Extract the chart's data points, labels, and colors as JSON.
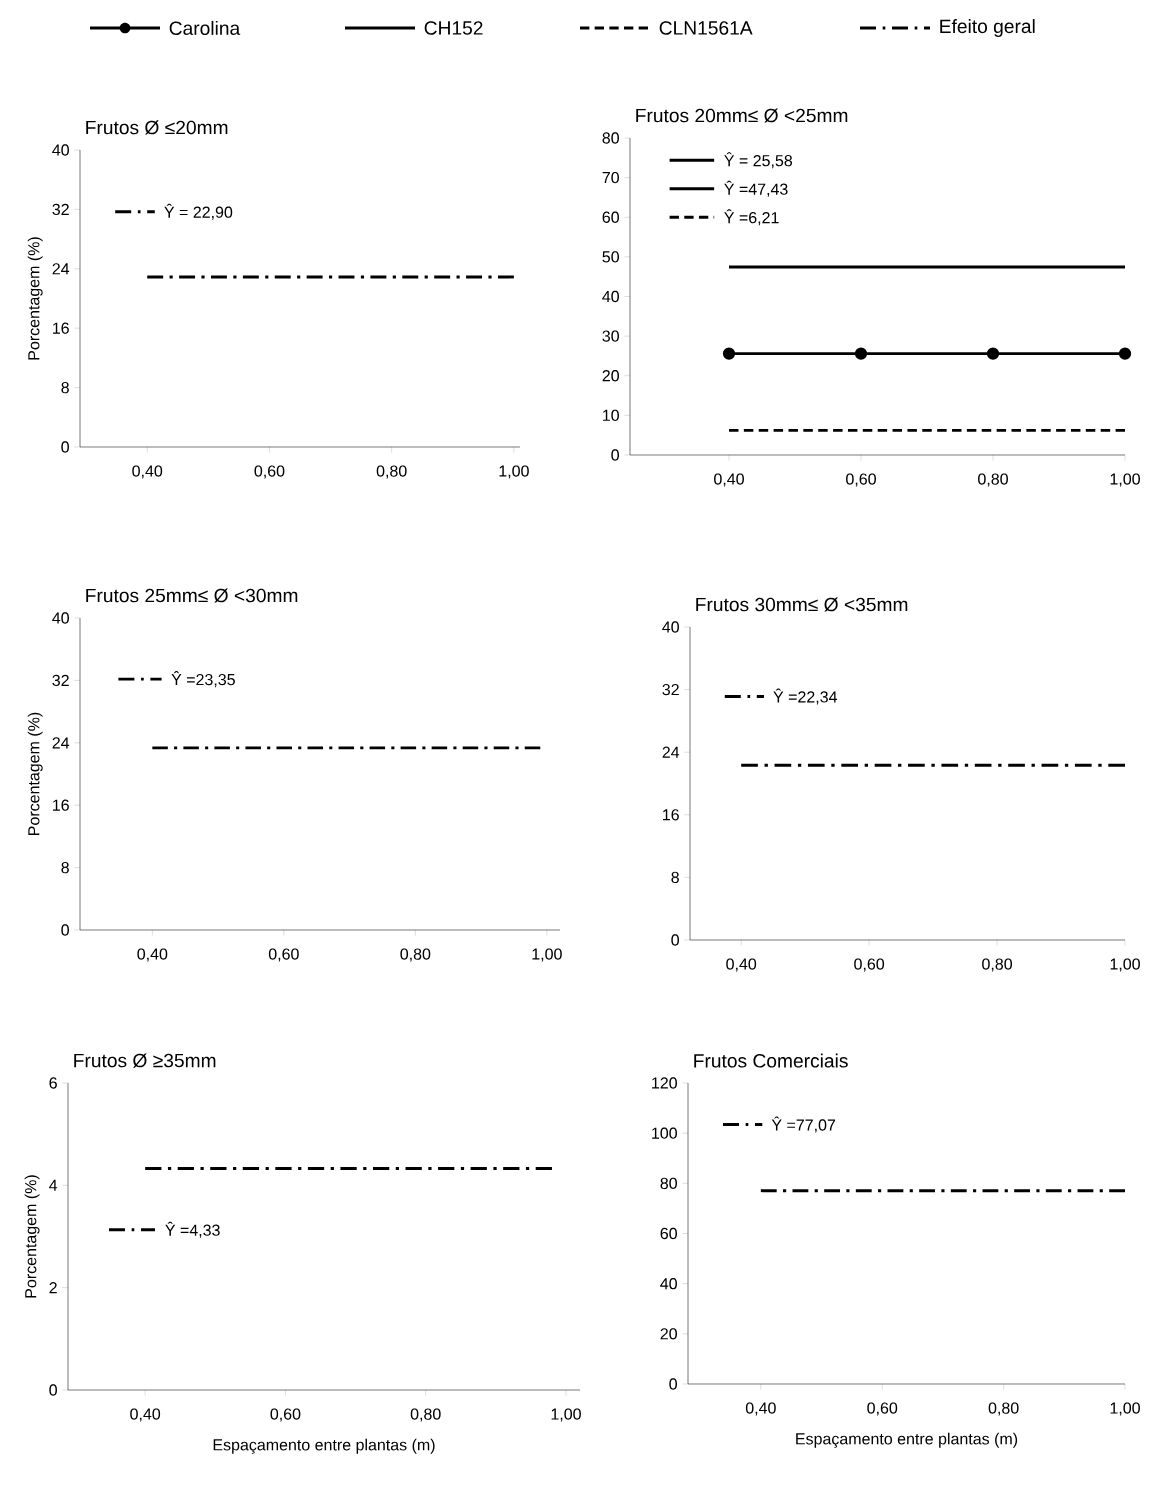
{
  "chart_data": [
    {
      "type": "line",
      "title": "Frutos Ø ≤20mm",
      "ylabel": "Porcentagem (%)",
      "xlim": [
        0.29,
        1.01
      ],
      "ylim": [
        0,
        40
      ],
      "xticks": [
        {
          "value": 0.4,
          "label": "0,40"
        },
        {
          "value": 0.6,
          "label": "0,60"
        },
        {
          "value": 0.8,
          "label": "0,80"
        },
        {
          "value": 1.0,
          "label": "1,00"
        }
      ],
      "yticks": [
        0,
        8,
        16,
        24,
        32,
        40
      ],
      "legend": "top",
      "annotations": [
        "Ŷ = 22,90"
      ],
      "series": [
        {
          "name": "Efeito geral",
          "color": "#000000",
          "x": [
            0.4,
            1.0
          ],
          "values": [
            22.9,
            22.9
          ],
          "line_style": "dashdot"
        }
      ]
    },
    {
      "type": "line",
      "title": "Frutos 20mm≤ Ø <25mm",
      "xlim": [
        0.25,
        1.0
      ],
      "ylim": [
        0,
        80
      ],
      "xticks": [
        {
          "value": 0.4,
          "label": "0,40"
        },
        {
          "value": 0.6,
          "label": "0,60"
        },
        {
          "value": 0.8,
          "label": "0,80"
        },
        {
          "value": 1.0,
          "label": "1,00"
        }
      ],
      "yticks": [
        0,
        10,
        20,
        30,
        40,
        50,
        60,
        70,
        80
      ],
      "legend": "top",
      "annotations": [
        "Ŷ = 25,58",
        "Ŷ =47,43",
        "Ŷ =6,21"
      ],
      "series": [
        {
          "name": "Carolina",
          "color": "#000000",
          "x": [
            0.4,
            0.6,
            0.8,
            1.0
          ],
          "values": [
            25.58,
            25.58,
            25.58,
            25.58
          ],
          "line_style": "solid",
          "marker": "circle"
        },
        {
          "name": "CH152",
          "color": "#000000",
          "x": [
            0.4,
            1.0
          ],
          "values": [
            47.43,
            47.43
          ],
          "line_style": "solid"
        },
        {
          "name": "CLN1561A",
          "color": "#000000",
          "x": [
            0.4,
            1.0
          ],
          "values": [
            6.21,
            6.21
          ],
          "line_style": "dashed"
        }
      ]
    },
    {
      "type": "line",
      "title": "Frutos 25mm≤ Ø <30mm",
      "ylabel": "Porcentagem (%)",
      "xlim": [
        0.29,
        1.02
      ],
      "ylim": [
        0,
        40
      ],
      "xticks": [
        {
          "value": 0.4,
          "label": "0,40"
        },
        {
          "value": 0.6,
          "label": "0,60"
        },
        {
          "value": 0.8,
          "label": "0,80"
        },
        {
          "value": 1.0,
          "label": "1,00"
        }
      ],
      "yticks": [
        0,
        8,
        16,
        24,
        32,
        40
      ],
      "legend": "top",
      "annotations": [
        "Ŷ =23,35"
      ],
      "series": [
        {
          "name": "Efeito geral",
          "color": "#000000",
          "x": [
            0.4,
            0.99
          ],
          "values": [
            23.35,
            23.35
          ],
          "line_style": "dashdot"
        }
      ]
    },
    {
      "type": "line",
      "title": "Frutos 30mm≤ Ø <35mm",
      "xlim": [
        0.32,
        1.0
      ],
      "ylim": [
        0,
        40
      ],
      "xticks": [
        {
          "value": 0.4,
          "label": "0,40"
        },
        {
          "value": 0.6,
          "label": "0,60"
        },
        {
          "value": 0.8,
          "label": "0,80"
        },
        {
          "value": 1.0,
          "label": "1,00"
        }
      ],
      "yticks": [
        0,
        8,
        16,
        24,
        32,
        40
      ],
      "legend": "top",
      "annotations": [
        "Ŷ =22,34"
      ],
      "series": [
        {
          "name": "Efeito geral",
          "color": "#000000",
          "x": [
            0.4,
            1.0
          ],
          "values": [
            22.34,
            22.34
          ],
          "line_style": "dashdot"
        }
      ]
    },
    {
      "type": "line",
      "title": "Frutos Ø ≥35mm",
      "ylabel": "Porcentagem (%)",
      "xlabel": "Espaçamento entre plantas (m)",
      "xlim": [
        0.29,
        1.02
      ],
      "ylim": [
        0,
        6
      ],
      "xticks": [
        {
          "value": 0.4,
          "label": "0,40"
        },
        {
          "value": 0.6,
          "label": "0,60"
        },
        {
          "value": 0.8,
          "label": "0,80"
        },
        {
          "value": 1.0,
          "label": "1,00"
        }
      ],
      "yticks": [
        0,
        2,
        4,
        6
      ],
      "legend": "top",
      "annotations": [
        "Ŷ =4,33"
      ],
      "series": [
        {
          "name": "Efeito geral",
          "color": "#000000",
          "x": [
            0.4,
            0.98
          ],
          "values": [
            4.33,
            4.33
          ],
          "line_style": "dashdot"
        }
      ]
    },
    {
      "type": "line",
      "title": "Frutos Comerciais",
      "xlabel": "Espaçamento entre plantas (m)",
      "xlim": [
        0.28,
        1.0
      ],
      "ylim": [
        0,
        120
      ],
      "xticks": [
        {
          "value": 0.4,
          "label": "0,40"
        },
        {
          "value": 0.6,
          "label": "0,60"
        },
        {
          "value": 0.8,
          "label": "0,80"
        },
        {
          "value": 1.0,
          "label": "1,00"
        }
      ],
      "yticks": [
        0,
        20,
        40,
        60,
        80,
        100,
        120
      ],
      "legend": "top",
      "annotations": [
        "Ŷ =77,07"
      ],
      "series": [
        {
          "name": "Efeito geral",
          "color": "#000000",
          "x": [
            0.4,
            1.0
          ],
          "values": [
            77.07,
            77.07
          ],
          "line_style": "dashdot"
        }
      ]
    }
  ]
}
